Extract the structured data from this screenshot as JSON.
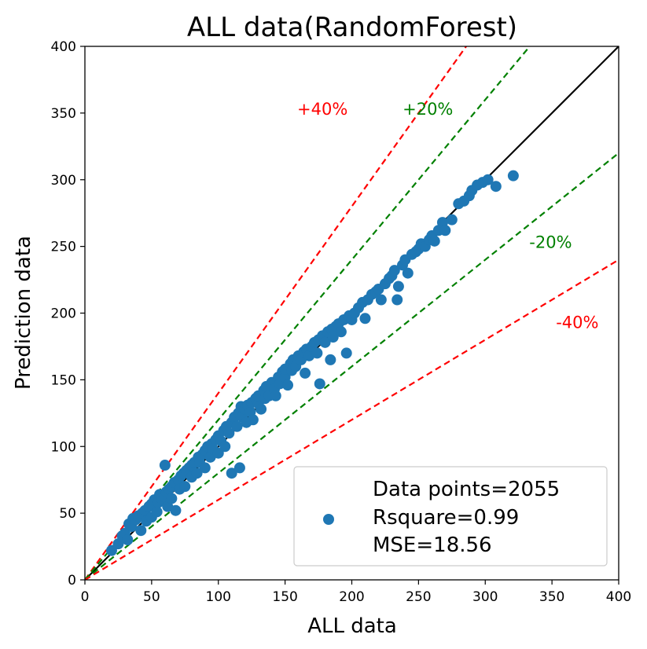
{
  "chart_data": {
    "type": "scatter",
    "title": "ALL data(RandomForest)",
    "xlabel": "ALL data",
    "ylabel": "Prediction data",
    "xlim": [
      0,
      400
    ],
    "ylim": [
      0,
      400
    ],
    "xticks": [
      "0",
      "50",
      "100",
      "150",
      "200",
      "250",
      "300",
      "350",
      "400"
    ],
    "yticks": [
      "0",
      "50",
      "100",
      "150",
      "200",
      "250",
      "300",
      "350",
      "400"
    ],
    "grid": false,
    "legend_position": "lower-right",
    "legend": {
      "lines": [
        "Data points=2055",
        "Rsquare=0.99",
        "MSE=18.56"
      ]
    },
    "reference_lines": [
      {
        "slope": 1.0,
        "color": "#000000",
        "style": "solid"
      },
      {
        "slope": 1.4,
        "color": "#ff0000",
        "style": "dashed",
        "label": "+40%",
        "label_at": [
          178,
          353
        ]
      },
      {
        "slope": 1.2,
        "color": "#008000",
        "style": "dashed",
        "label": "+20%",
        "label_at": [
          257,
          353
        ]
      },
      {
        "slope": 0.8,
        "color": "#008000",
        "style": "dashed",
        "label": "-20%",
        "label_at": [
          349,
          253
        ]
      },
      {
        "slope": 0.6,
        "color": "#ff0000",
        "style": "dashed",
        "label": "-40%",
        "label_at": [
          369,
          193
        ]
      }
    ],
    "series": [
      {
        "color": "#1f77b4",
        "points": [
          [
            20,
            22
          ],
          [
            25,
            27
          ],
          [
            28,
            33
          ],
          [
            30,
            35
          ],
          [
            32,
            30
          ],
          [
            33,
            42
          ],
          [
            35,
            40
          ],
          [
            36,
            46
          ],
          [
            38,
            45
          ],
          [
            40,
            48
          ],
          [
            42,
            37
          ],
          [
            43,
            50
          ],
          [
            45,
            52
          ],
          [
            46,
            44
          ],
          [
            48,
            55
          ],
          [
            50,
            47
          ],
          [
            50,
            57
          ],
          [
            52,
            60
          ],
          [
            54,
            51
          ],
          [
            55,
            58
          ],
          [
            56,
            64
          ],
          [
            58,
            60
          ],
          [
            60,
            86
          ],
          [
            60,
            62
          ],
          [
            61,
            66
          ],
          [
            62,
            55
          ],
          [
            63,
            68
          ],
          [
            65,
            61
          ],
          [
            65,
            70
          ],
          [
            67,
            73
          ],
          [
            68,
            52
          ],
          [
            70,
            75
          ],
          [
            71,
            68
          ],
          [
            72,
            78
          ],
          [
            74,
            80
          ],
          [
            75,
            70
          ],
          [
            76,
            82
          ],
          [
            78,
            84
          ],
          [
            80,
            77
          ],
          [
            80,
            86
          ],
          [
            82,
            88
          ],
          [
            84,
            80
          ],
          [
            85,
            92
          ],
          [
            86,
            88
          ],
          [
            88,
            94
          ],
          [
            90,
            84
          ],
          [
            90,
            97
          ],
          [
            92,
            100
          ],
          [
            94,
            92
          ],
          [
            95,
            102
          ],
          [
            96,
            98
          ],
          [
            98,
            105
          ],
          [
            100,
            95
          ],
          [
            100,
            108
          ],
          [
            102,
            104
          ],
          [
            104,
            112
          ],
          [
            105,
            100
          ],
          [
            106,
            115
          ],
          [
            108,
            110
          ],
          [
            110,
            118
          ],
          [
            110,
            80
          ],
          [
            112,
            122
          ],
          [
            114,
            115
          ],
          [
            115,
            125
          ],
          [
            116,
            84
          ],
          [
            117,
            130
          ],
          [
            118,
            122
          ],
          [
            120,
            128
          ],
          [
            121,
            118
          ],
          [
            122,
            131
          ],
          [
            124,
            126
          ],
          [
            125,
            133
          ],
          [
            126,
            120
          ],
          [
            128,
            136
          ],
          [
            130,
            132
          ],
          [
            130,
            138
          ],
          [
            132,
            128
          ],
          [
            134,
            142
          ],
          [
            135,
            136
          ],
          [
            136,
            145
          ],
          [
            138,
            138
          ],
          [
            140,
            148
          ],
          [
            142,
            143
          ],
          [
            143,
            138
          ],
          [
            145,
            152
          ],
          [
            146,
            147
          ],
          [
            148,
            156
          ],
          [
            150,
            152
          ],
          [
            150,
            158
          ],
          [
            152,
            146
          ],
          [
            154,
            162
          ],
          [
            155,
            157
          ],
          [
            156,
            165
          ],
          [
            158,
            160
          ],
          [
            160,
            168
          ],
          [
            162,
            165
          ],
          [
            164,
            171
          ],
          [
            165,
            155
          ],
          [
            166,
            173
          ],
          [
            168,
            168
          ],
          [
            170,
            175
          ],
          [
            172,
            178
          ],
          [
            174,
            170
          ],
          [
            175,
            180
          ],
          [
            176,
            147
          ],
          [
            178,
            183
          ],
          [
            180,
            178
          ],
          [
            182,
            186
          ],
          [
            184,
            165
          ],
          [
            185,
            188
          ],
          [
            186,
            182
          ],
          [
            188,
            190
          ],
          [
            190,
            192
          ],
          [
            192,
            186
          ],
          [
            194,
            195
          ],
          [
            196,
            170
          ],
          [
            198,
            198
          ],
          [
            200,
            195
          ],
          [
            202,
            200
          ],
          [
            205,
            204
          ],
          [
            208,
            208
          ],
          [
            210,
            196
          ],
          [
            212,
            210
          ],
          [
            215,
            214
          ],
          [
            218,
            216
          ],
          [
            220,
            218
          ],
          [
            222,
            210
          ],
          [
            225,
            222
          ],
          [
            228,
            226
          ],
          [
            230,
            228
          ],
          [
            232,
            232
          ],
          [
            234,
            210
          ],
          [
            235,
            220
          ],
          [
            238,
            236
          ],
          [
            240,
            240
          ],
          [
            242,
            230
          ],
          [
            245,
            244
          ],
          [
            248,
            246
          ],
          [
            250,
            248
          ],
          [
            252,
            252
          ],
          [
            255,
            250
          ],
          [
            258,
            255
          ],
          [
            260,
            258
          ],
          [
            262,
            254
          ],
          [
            265,
            262
          ],
          [
            268,
            268
          ],
          [
            270,
            262
          ],
          [
            275,
            270
          ],
          [
            280,
            282
          ],
          [
            284,
            284
          ],
          [
            288,
            288
          ],
          [
            290,
            292
          ],
          [
            294,
            296
          ],
          [
            298,
            298
          ],
          [
            302,
            300
          ],
          [
            308,
            295
          ],
          [
            321,
            303
          ]
        ]
      }
    ]
  }
}
